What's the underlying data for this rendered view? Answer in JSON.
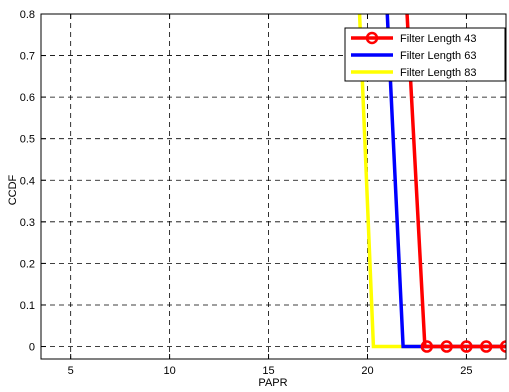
{
  "chart_data": {
    "type": "line",
    "title": "",
    "xlabel": "PAPR",
    "ylabel": "CCDF",
    "xlim": [
      3.5,
      27
    ],
    "ylim": [
      -0.03,
      0.8
    ],
    "xticks": [
      5,
      10,
      15,
      20,
      25
    ],
    "yticks": [
      0,
      0.1,
      0.2,
      0.3,
      0.4,
      0.5,
      0.6,
      0.7,
      0.8
    ],
    "xtick_labels": [
      "5",
      "10",
      "15",
      "20",
      "25"
    ],
    "ytick_labels": [
      "0",
      "0.1",
      "0.2",
      "0.3",
      "0.4",
      "0.5",
      "0.6",
      "0.7",
      "0.8"
    ],
    "grid": true,
    "legend_position": "top-right",
    "series": [
      {
        "name": "Filter Length 43",
        "color": "#ff0000",
        "marker": "circle",
        "x": [
          22,
          22.9,
          23,
          24,
          25,
          26,
          27
        ],
        "y": [
          0.8,
          0.0,
          0.0,
          0.0,
          0.0,
          0.0,
          0.0
        ],
        "marker_x": [
          23,
          24,
          25,
          26,
          27
        ],
        "marker_y": [
          0,
          0,
          0,
          0,
          0
        ]
      },
      {
        "name": "Filter Length 63",
        "color": "#0000ff",
        "marker": "none",
        "x": [
          21,
          21.8,
          27
        ],
        "y": [
          0.8,
          0.0,
          0.0
        ]
      },
      {
        "name": "Filter Length 83",
        "color": "#ffff00",
        "marker": "none",
        "x": [
          19.6,
          20.3,
          27
        ],
        "y": [
          0.8,
          0.0,
          0.0
        ]
      }
    ]
  }
}
